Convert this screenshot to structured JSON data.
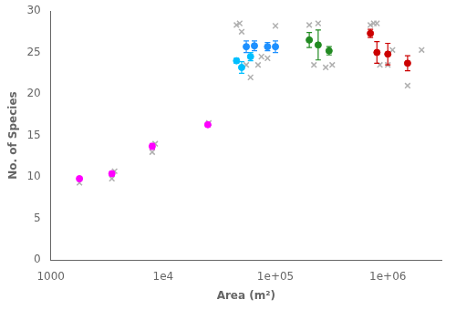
{
  "chart_data": {
    "type": "scatter",
    "xlabel": "Area (m²)",
    "ylabel": "No. of Species",
    "log": "x",
    "grid": false,
    "xlim": [
      1000,
      3000000
    ],
    "xticks": [
      1000,
      {
        "value": 10000,
        "label": "1e4"
      },
      {
        "value": 100000,
        "label": "1e+05"
      },
      {
        "value": 1000000,
        "label": "1e+06"
      }
    ],
    "ylim": [
      0,
      30
    ],
    "yticks": [
      0,
      5,
      10,
      15,
      20,
      25,
      30
    ],
    "series": [
      {
        "color": "#b0b0b0",
        "marker": "x",
        "x": [
          1800,
          3500,
          3700,
          8000,
          8500,
          25000,
          25500,
          45000,
          48000,
          50000,
          55000,
          60000,
          70000,
          75000,
          85000,
          100000,
          200000,
          220000,
          240000,
          280000,
          320000,
          700000,
          750000,
          800000,
          850000,
          1000000,
          1100000,
          1500000,
          2000000
        ],
        "values": [
          9.3,
          9.8,
          10.7,
          13.0,
          14.0,
          16.3,
          16.5,
          28.3,
          28.5,
          27.5,
          23.5,
          22.0,
          23.5,
          24.5,
          24.3,
          28.2,
          28.3,
          23.5,
          28.5,
          23.2,
          23.5,
          28.3,
          28.5,
          28.5,
          23.5,
          23.5,
          25.3,
          21.0,
          25.3
        ]
      },
      {
        "marker": "o",
        "x": [
          1800,
          3500,
          8000,
          25000,
          45000,
          50000,
          60000,
          55000,
          65000,
          85000,
          100000,
          200000,
          240000,
          300000,
          700000,
          800000,
          1000000,
          1500000
        ],
        "values": [
          9.8,
          10.4,
          13.7,
          16.3,
          24.0,
          23.2,
          24.5,
          25.7,
          25.8,
          25.7,
          25.7,
          26.5,
          25.9,
          25.2,
          27.3,
          25.0,
          24.8,
          23.7
        ],
        "yerr": [
          0.25,
          0.25,
          0.35,
          0.12,
          0.3,
          0.7,
          0.5,
          0.7,
          0.6,
          0.5,
          0.7,
          0.9,
          1.8,
          0.5,
          0.5,
          1.3,
          1.3,
          0.9
        ],
        "colors": [
          "#ff00ff",
          "#ff00ff",
          "#ff00ff",
          "#ff00ff",
          "#00bfff",
          "#00bfff",
          "#00bfff",
          "#1e90ff",
          "#1e90ff",
          "#1e90ff",
          "#1e90ff",
          "#228b22",
          "#228b22",
          "#228b22",
          "#cc0000",
          "#cc0000",
          "#cc0000",
          "#cc0000"
        ]
      }
    ]
  }
}
